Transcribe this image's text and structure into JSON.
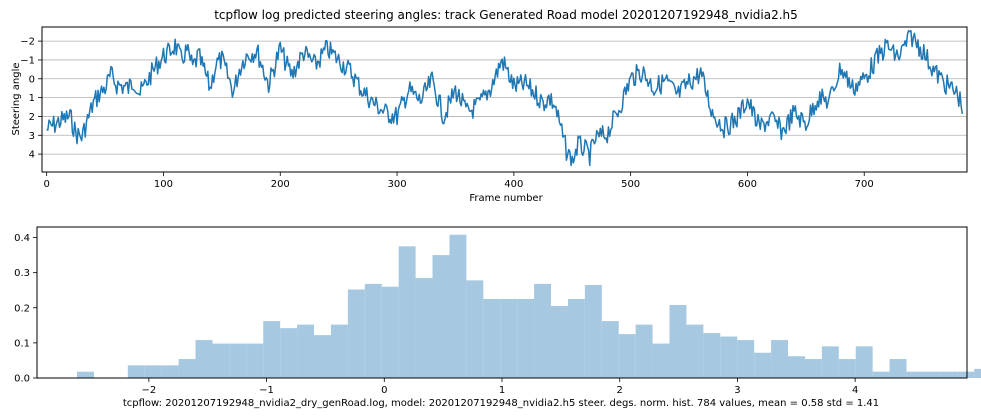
{
  "chart_data": [
    {
      "type": "line",
      "title": "tcpflow log predicted steering angles: track Generated Road model 20201207192948_nvidia2.h5",
      "xlabel": "Frame number",
      "ylabel": "Steering angle",
      "xlim": [
        -4,
        788
      ],
      "ylim": [
        4.95,
        -2.75
      ],
      "y_inverted": true,
      "grid": "horizontal",
      "x_ticks": [
        0,
        100,
        200,
        300,
        400,
        500,
        600,
        700
      ],
      "x_tick_labels": [
        "0",
        "100",
        "200",
        "300",
        "400",
        "500",
        "600",
        "700"
      ],
      "y_ticks": [
        -2,
        -1,
        0,
        1,
        2,
        3,
        4
      ],
      "y_tick_labels": [
        "−2",
        "−1",
        "0",
        "1",
        "2",
        "3",
        "4"
      ],
      "color": "#1f77b4",
      "series": [
        {
          "name": "",
          "x": [
            0,
            10,
            20,
            25,
            30,
            35,
            40,
            45,
            50,
            55,
            60,
            70,
            75,
            80,
            90,
            95,
            100,
            105,
            110,
            115,
            120,
            125,
            130,
            135,
            140,
            145,
            150,
            160,
            165,
            170,
            180,
            190,
            200,
            205,
            210,
            220,
            230,
            240,
            250,
            260,
            270,
            280,
            290,
            300,
            310,
            320,
            330,
            340,
            350,
            360,
            370,
            380,
            390,
            400,
            410,
            420,
            425,
            430,
            435,
            440,
            445,
            450,
            455,
            460,
            465,
            470,
            480,
            490,
            500,
            510,
            520,
            530,
            540,
            550,
            560,
            570,
            580,
            590,
            600,
            610,
            620,
            630,
            640,
            650,
            660,
            670,
            680,
            690,
            700,
            710,
            720,
            725,
            730,
            740,
            750,
            760,
            770,
            780,
            784
          ],
          "y": [
            2.7,
            2.3,
            2.0,
            2.9,
            3.1,
            2.2,
            1.3,
            0.8,
            0.5,
            -0.2,
            0.3,
            0.5,
            0.1,
            0.8,
            -0.3,
            -0.8,
            -1.2,
            -1.4,
            -1.8,
            -1.0,
            -1.5,
            -0.6,
            -1.2,
            -0.4,
            0.5,
            -0.8,
            -1.0,
            0.7,
            -0.5,
            -1.2,
            -1.5,
            0.3,
            -1.6,
            -0.8,
            -0.2,
            -1.4,
            -0.7,
            -1.6,
            -1.0,
            -0.4,
            0.6,
            1.3,
            1.8,
            2.0,
            0.6,
            1.2,
            0.1,
            2.0,
            0.6,
            1.8,
            1.4,
            0.5,
            -1.0,
            0.4,
            0.3,
            0.9,
            1.3,
            1.0,
            1.4,
            2.6,
            3.8,
            4.4,
            3.5,
            3.7,
            4.1,
            3.2,
            2.9,
            1.6,
            0.0,
            -0.4,
            0.5,
            0.1,
            0.9,
            0.2,
            -0.3,
            1.8,
            2.6,
            2.2,
            1.1,
            2.6,
            2.1,
            2.8,
            1.8,
            2.4,
            1.0,
            1.2,
            -0.6,
            0.5,
            0.0,
            -1.0,
            -1.8,
            -1.3,
            -1.2,
            -2.3,
            -1.5,
            -0.4,
            0.3,
            0.8,
            1.5
          ]
        }
      ]
    },
    {
      "type": "bar",
      "subtype": "histogram",
      "xlabel": "tcpflow: 20201207192948_nvidia2_dry_genRoad.log, model: 20201207192948_nvidia2.h5 steer. degs. norm. hist. 784 values, mean = 0.58 std = 1.41",
      "xlim": [
        -2.95,
        4.95
      ],
      "ylim": [
        0,
        0.43
      ],
      "x_ticks": [
        -2,
        -1,
        0,
        1,
        2,
        3,
        4
      ],
      "x_tick_labels": [
        "−2",
        "−1",
        "0",
        "1",
        "2",
        "3",
        "4"
      ],
      "y_ticks": [
        0.0,
        0.1,
        0.2,
        0.3,
        0.4
      ],
      "y_tick_labels": [
        "0.0",
        "0.1",
        "0.2",
        "0.3",
        "0.4"
      ],
      "color": "#a6c8e1",
      "bin_start": -2.61,
      "bin_width": 0.1438,
      "values": [
        0.018,
        0,
        0,
        0.036,
        0.036,
        0.036,
        0.054,
        0.108,
        0.098,
        0.098,
        0.098,
        0.162,
        0.142,
        0.152,
        0.122,
        0.152,
        0.252,
        0.268,
        0.26,
        0.375,
        0.285,
        0.35,
        0.408,
        0.278,
        0.225,
        0.225,
        0.225,
        0.268,
        0.205,
        0.225,
        0.265,
        0.162,
        0.125,
        0.152,
        0.098,
        0.208,
        0.152,
        0.128,
        0.118,
        0.108,
        0.072,
        0.108,
        0.062,
        0.054,
        0.09,
        0.054,
        0.09,
        0.018,
        0.054,
        0.018,
        0.018,
        0.018,
        0.018,
        0.026,
        0.018
      ]
    }
  ]
}
